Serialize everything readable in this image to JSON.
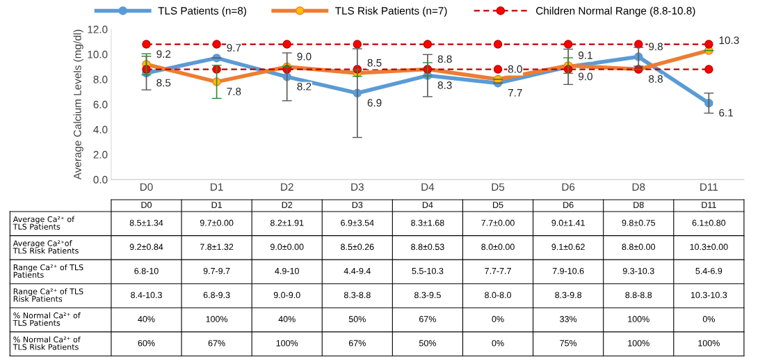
{
  "chart_data": [
    {
      "type": "line",
      "ylabel": "Average Calcium Levels (mg/dl)",
      "categories": [
        "D0",
        "D1",
        "D2",
        "D3",
        "D4",
        "D5",
        "D6",
        "D8",
        "D11"
      ],
      "ylim": [
        0,
        12
      ],
      "yticks": [
        {
          "value": 0,
          "label": "0.0"
        },
        {
          "value": 2,
          "label": "2.0"
        },
        {
          "value": 4,
          "label": "4.0"
        },
        {
          "value": 6,
          "label": "6.0"
        },
        {
          "value": 8,
          "label": "8.0"
        },
        {
          "value": 10,
          "label": "10.0"
        },
        {
          "value": 12,
          "label": "12.0"
        }
      ],
      "legend": "top",
      "grid": false,
      "marker": "circle",
      "series": [
        {
          "name": "TLS Patients (n=8)",
          "color": "#5b9bd5",
          "values": [
            8.5,
            9.7,
            8.2,
            6.9,
            8.3,
            7.7,
            9.0,
            9.8,
            6.1
          ],
          "errors": [
            1.34,
            0.0,
            1.91,
            3.54,
            1.68,
            0.0,
            1.41,
            0.75,
            0.8
          ],
          "value_labels": [
            "8.5",
            "9.7",
            "8.2",
            "6.9",
            "8.3",
            "7.7",
            "9.0",
            "9.8",
            "6.1"
          ],
          "line_style": "solid"
        },
        {
          "name": "TLS Risk Patients (n=7)",
          "color": "#ed7d31",
          "values": [
            9.2,
            7.8,
            9.0,
            8.5,
            8.8,
            8.0,
            9.1,
            8.8,
            10.3
          ],
          "errors": [
            0.84,
            1.32,
            0.0,
            0.26,
            0.53,
            0.0,
            0.62,
            0.0,
            0.0
          ],
          "value_labels": [
            "9.2",
            "7.8",
            "9.0",
            "8.5",
            "8.8",
            "8.0",
            "9.1",
            "8.8",
            "10.3"
          ],
          "line_style": "solid"
        },
        {
          "name": "Children Normal Range (8.8-10.8)",
          "color": "#c00000",
          "values": [
            10.8,
            10.8,
            10.8,
            10.8,
            10.8,
            10.8,
            10.8,
            10.8,
            10.8
          ],
          "line_style": "dashed"
        },
        {
          "color": "#c00000",
          "values": [
            8.8,
            8.8,
            8.8,
            8.8,
            8.8,
            8.8,
            8.8,
            8.8,
            8.8
          ],
          "line_style": "dashed"
        }
      ]
    },
    {
      "type": "other",
      "categories": [
        "D0",
        "D1",
        "D2",
        "D3",
        "D4",
        "D5",
        "D6",
        "D8",
        "D11"
      ],
      "y_categories": [
        "Average Ca²⁺ of\nTLS Patients",
        "Average Ca²⁺of\nTLS Risk Patients",
        "Range Ca²⁺ of TLS\nPatients",
        "Range Ca²⁺ of TLS\nRisk Patients",
        "% Normal Ca²⁺ of\nTLS Patients",
        "% Normal Ca²⁺ of\nTLS Risk Patients"
      ],
      "cell_labels": [
        [
          "8.5±1.34",
          "9.7±0.00",
          "8.2±1.91",
          "6.9±3.54",
          "8.3±1.68",
          "7.7±0.00",
          "9.0±1.41",
          "9.8±0.75",
          "6.1±0.80"
        ],
        [
          "9.2±0.84",
          "7.8±1.32",
          "9.0±0.00",
          "8.5±0.26",
          "8.8±0.53",
          "8.0±0.00",
          "9.1±0.62",
          "8.8±0.00",
          "10.3±0.00"
        ],
        [
          "6.8-10",
          "9.7-9.7",
          "4.9-10",
          "4.4-9.4",
          "5.5-10.3",
          "7.7-7.7",
          "7.9-10.6",
          "9.3-10.3",
          "5.4-6.9"
        ],
        [
          "8.4-10.3",
          "6.8-9.3",
          "9.0-9.0",
          "8.3-8.8",
          "8.3-9.5",
          "8.0-8.0",
          "8.3-9.8",
          "8.8-8.8",
          "10.3-10.3"
        ],
        [
          "40%",
          "100%",
          "40%",
          "50%",
          "67%",
          "0%",
          "33%",
          "100%",
          "0%"
        ],
        [
          "60%",
          "67%",
          "100%",
          "67%",
          "50%",
          "0%",
          "75%",
          "100%",
          "100%"
        ]
      ]
    }
  ]
}
